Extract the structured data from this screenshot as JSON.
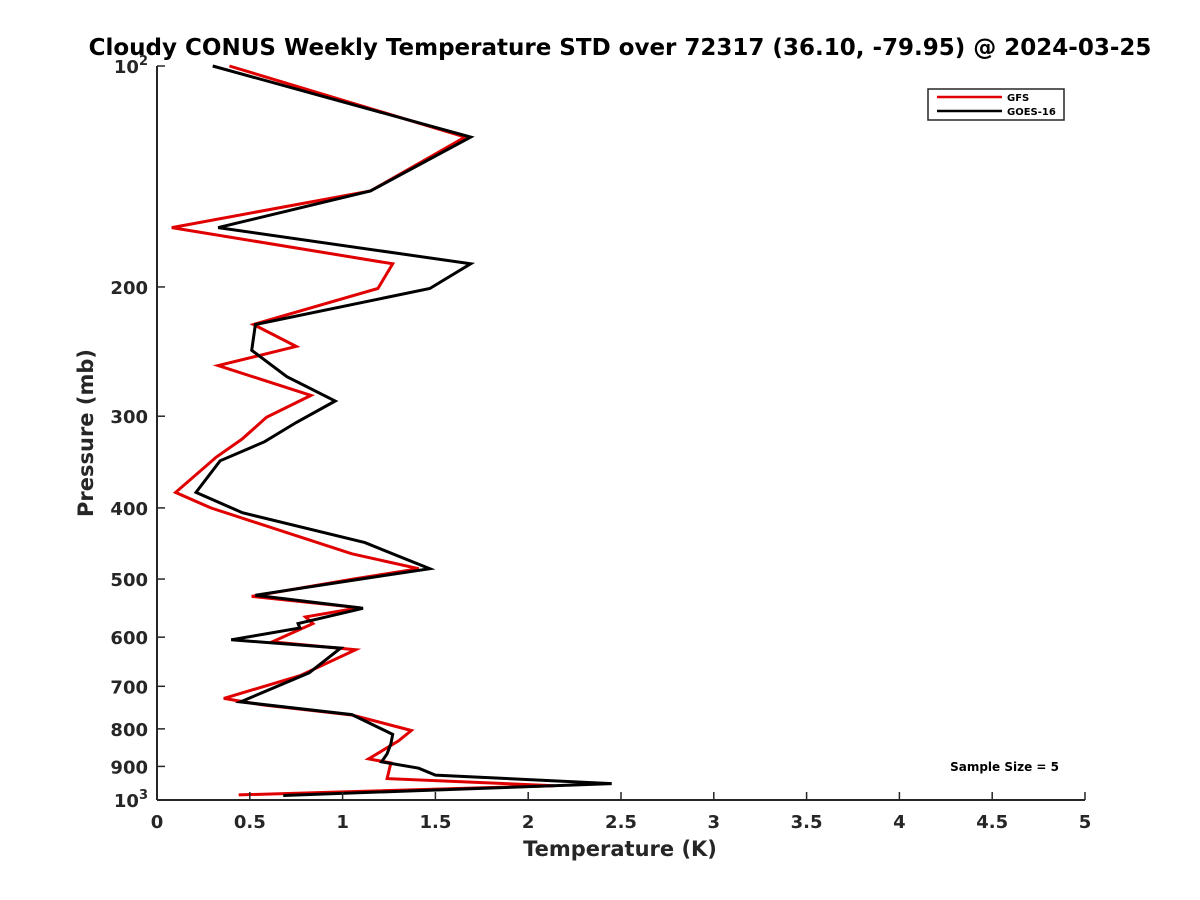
{
  "chart_data": {
    "type": "line",
    "title": "Cloudy CONUS Weekly Temperature STD over 72317 (36.10, -79.95) @ 2024-03-25",
    "xlabel": "Temperature (K)",
    "ylabel": "Pressure (mb)",
    "xlim": [
      0,
      5
    ],
    "ylim": [
      100,
      1000
    ],
    "y_scale": "log",
    "y_reversed": true,
    "grid": false,
    "x_ticks": [
      "0",
      "0.5",
      "1",
      "1.5",
      "2",
      "2.5",
      "3",
      "3.5",
      "4",
      "4.5",
      "5"
    ],
    "y_ticks": [
      {
        "value": 100,
        "base": "10",
        "exp": "2"
      },
      {
        "value": 200,
        "label": "200"
      },
      {
        "value": 300,
        "label": "300"
      },
      {
        "value": 400,
        "label": "400"
      },
      {
        "value": 500,
        "label": "500"
      },
      {
        "value": 600,
        "label": "600"
      },
      {
        "value": 700,
        "label": "700"
      },
      {
        "value": 800,
        "label": "800"
      },
      {
        "value": 900,
        "label": "900"
      },
      {
        "value": 1000,
        "base": "10",
        "exp": "3"
      }
    ],
    "legend": {
      "position": "top-right"
    },
    "annotation": "Sample Size = 5",
    "series": [
      {
        "name": "GFS",
        "color": "#e00000",
        "points": [
          [
            0.39,
            100
          ],
          [
            1.66,
            125
          ],
          [
            1.15,
            148
          ],
          [
            0.08,
            166
          ],
          [
            1.27,
            186
          ],
          [
            1.19,
            201
          ],
          [
            0.52,
            225
          ],
          [
            0.75,
            241
          ],
          [
            0.33,
            256
          ],
          [
            0.83,
            281
          ],
          [
            0.59,
            301
          ],
          [
            0.46,
            322
          ],
          [
            0.32,
            341
          ],
          [
            0.1,
            381
          ],
          [
            0.29,
            400
          ],
          [
            1.05,
            462
          ],
          [
            1.41,
            484
          ],
          [
            1.06,
            500
          ],
          [
            0.51,
            528
          ],
          [
            1.09,
            547
          ],
          [
            0.8,
            563
          ],
          [
            0.84,
            575
          ],
          [
            0.62,
            609
          ],
          [
            1.07,
            624
          ],
          [
            0.77,
            677
          ],
          [
            0.36,
            727
          ],
          [
            0.57,
            742
          ],
          [
            1.05,
            766
          ],
          [
            1.37,
            804
          ],
          [
            1.3,
            831
          ],
          [
            1.14,
            879
          ],
          [
            1.26,
            890
          ],
          [
            1.24,
            935
          ],
          [
            2.14,
            956
          ],
          [
            0.44,
            984
          ]
        ]
      },
      {
        "name": "GOES-16",
        "color": "#000000",
        "points": [
          [
            0.3,
            100
          ],
          [
            1.69,
            125
          ],
          [
            1.15,
            148
          ],
          [
            0.33,
            166
          ],
          [
            1.69,
            186
          ],
          [
            1.47,
            201
          ],
          [
            0.53,
            225
          ],
          [
            0.51,
            244
          ],
          [
            0.7,
            265
          ],
          [
            0.96,
            286
          ],
          [
            0.75,
            306
          ],
          [
            0.58,
            325
          ],
          [
            0.34,
            345
          ],
          [
            0.21,
            381
          ],
          [
            0.46,
            406
          ],
          [
            1.12,
            446
          ],
          [
            1.47,
            484
          ],
          [
            1.1,
            500
          ],
          [
            0.53,
            526
          ],
          [
            1.11,
            548
          ],
          [
            0.76,
            575
          ],
          [
            0.77,
            583
          ],
          [
            0.4,
            605
          ],
          [
            0.99,
            621
          ],
          [
            0.82,
            671
          ],
          [
            0.45,
            735
          ],
          [
            1.05,
            765
          ],
          [
            1.27,
            814
          ],
          [
            1.26,
            838
          ],
          [
            1.24,
            865
          ],
          [
            1.21,
            887
          ],
          [
            1.41,
            905
          ],
          [
            1.5,
            925
          ],
          [
            2.45,
            950
          ],
          [
            0.68,
            986
          ]
        ]
      }
    ]
  }
}
